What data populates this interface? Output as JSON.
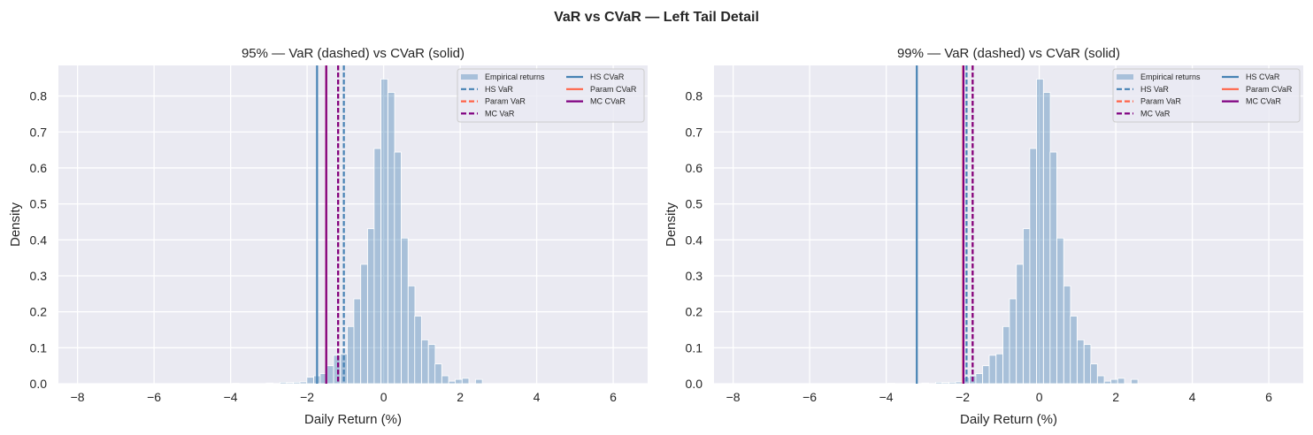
{
  "figure": {
    "suptitle": "VaR vs CVaR — Left Tail Detail"
  },
  "colors": {
    "background": "#eaeaf2",
    "grid": "#ffffff",
    "histogram": "#4682b4",
    "hs": "#4682b4",
    "param": "#ff6347",
    "mc": "#800080"
  },
  "chart_data": [
    {
      "type": "bar",
      "title": "95% — VaR (dashed) vs CVaR (solid)",
      "xlabel": "Daily Return (%)",
      "ylabel": "Density",
      "xlim": [
        -8.5,
        6.9
      ],
      "ylim": [
        0,
        0.885
      ],
      "xticks": [
        -8,
        -6,
        -4,
        -2,
        0,
        2,
        4,
        6
      ],
      "xtick_labels": [
        "−8",
        "−6",
        "−4",
        "−2",
        "0",
        "2",
        "4",
        "6"
      ],
      "yticks": [
        0,
        0.1,
        0.2,
        0.3,
        0.4,
        0.5,
        0.6,
        0.7,
        0.8
      ],
      "ytick_labels": [
        "0.0",
        "0.1",
        "0.2",
        "0.3",
        "0.4",
        "0.5",
        "0.6",
        "0.7",
        "0.8"
      ],
      "grid": true,
      "legend_position": "top-right",
      "histogram": {
        "name": "Empirical returns",
        "bin_width": 0.176,
        "bin_centers": [
          -3.86,
          -2.98,
          -2.62,
          -2.45,
          -2.27,
          -2.1,
          -1.92,
          -1.74,
          -1.57,
          -1.39,
          -1.22,
          -1.04,
          -0.86,
          -0.69,
          -0.51,
          -0.33,
          -0.16,
          0.02,
          0.2,
          0.37,
          0.55,
          0.73,
          0.9,
          1.08,
          1.26,
          1.43,
          1.61,
          1.79,
          1.96,
          2.14,
          2.49
        ],
        "density": [
          0.001,
          0.002,
          0.004,
          0.003,
          0.004,
          0.005,
          0.018,
          0.022,
          0.028,
          0.05,
          0.079,
          0.083,
          0.159,
          0.236,
          0.332,
          0.431,
          0.654,
          0.847,
          0.81,
          0.644,
          0.405,
          0.272,
          0.188,
          0.122,
          0.109,
          0.055,
          0.022,
          0.007,
          0.012,
          0.015,
          0.012
        ]
      },
      "lines": [
        {
          "name": "HS VaR",
          "x": -1.04,
          "style": "dashed",
          "color_key": "hs"
        },
        {
          "name": "Param VaR",
          "x": -1.19,
          "style": "dashed",
          "color_key": "param"
        },
        {
          "name": "MC VaR",
          "x": -1.19,
          "style": "dashed",
          "color_key": "mc"
        },
        {
          "name": "HS CVaR",
          "x": -1.74,
          "style": "solid",
          "color_key": "hs"
        },
        {
          "name": "Param CVaR",
          "x": -1.5,
          "style": "solid",
          "color_key": "param"
        },
        {
          "name": "MC CVaR",
          "x": -1.5,
          "style": "solid",
          "color_key": "mc"
        }
      ]
    },
    {
      "type": "bar",
      "title": "99% — VaR (dashed) vs CVaR (solid)",
      "xlabel": "Daily Return (%)",
      "ylabel": "Density",
      "xlim": [
        -8.5,
        6.9
      ],
      "ylim": [
        0,
        0.885
      ],
      "xticks": [
        -8,
        -6,
        -4,
        -2,
        0,
        2,
        4,
        6
      ],
      "xtick_labels": [
        "−8",
        "−6",
        "−4",
        "−2",
        "0",
        "2",
        "4",
        "6"
      ],
      "yticks": [
        0,
        0.1,
        0.2,
        0.3,
        0.4,
        0.5,
        0.6,
        0.7,
        0.8
      ],
      "ytick_labels": [
        "0.0",
        "0.1",
        "0.2",
        "0.3",
        "0.4",
        "0.5",
        "0.6",
        "0.7",
        "0.8"
      ],
      "grid": true,
      "legend_position": "top-right",
      "histogram": {
        "name": "Empirical returns",
        "bin_width": 0.176,
        "bin_centers": [
          -3.86,
          -2.98,
          -2.62,
          -2.45,
          -2.27,
          -2.1,
          -1.92,
          -1.74,
          -1.57,
          -1.39,
          -1.22,
          -1.04,
          -0.86,
          -0.69,
          -0.51,
          -0.33,
          -0.16,
          0.02,
          0.2,
          0.37,
          0.55,
          0.73,
          0.9,
          1.08,
          1.26,
          1.43,
          1.61,
          1.79,
          1.96,
          2.14,
          2.49
        ],
        "density": [
          0.001,
          0.002,
          0.004,
          0.003,
          0.004,
          0.005,
          0.018,
          0.022,
          0.028,
          0.05,
          0.079,
          0.083,
          0.159,
          0.236,
          0.332,
          0.431,
          0.654,
          0.847,
          0.81,
          0.644,
          0.405,
          0.272,
          0.188,
          0.122,
          0.109,
          0.055,
          0.022,
          0.007,
          0.012,
          0.015,
          0.012
        ]
      },
      "lines": [
        {
          "name": "HS VaR",
          "x": -1.9,
          "style": "dashed",
          "color_key": "hs"
        },
        {
          "name": "Param VaR",
          "x": -1.74,
          "style": "dashed",
          "color_key": "param"
        },
        {
          "name": "MC VaR",
          "x": -1.74,
          "style": "dashed",
          "color_key": "mc"
        },
        {
          "name": "HS CVaR",
          "x": -3.2,
          "style": "solid",
          "color_key": "hs"
        },
        {
          "name": "Param CVaR",
          "x": -1.99,
          "style": "solid",
          "color_key": "param"
        },
        {
          "name": "MC CVaR",
          "x": -1.98,
          "style": "solid",
          "color_key": "mc"
        }
      ]
    }
  ]
}
